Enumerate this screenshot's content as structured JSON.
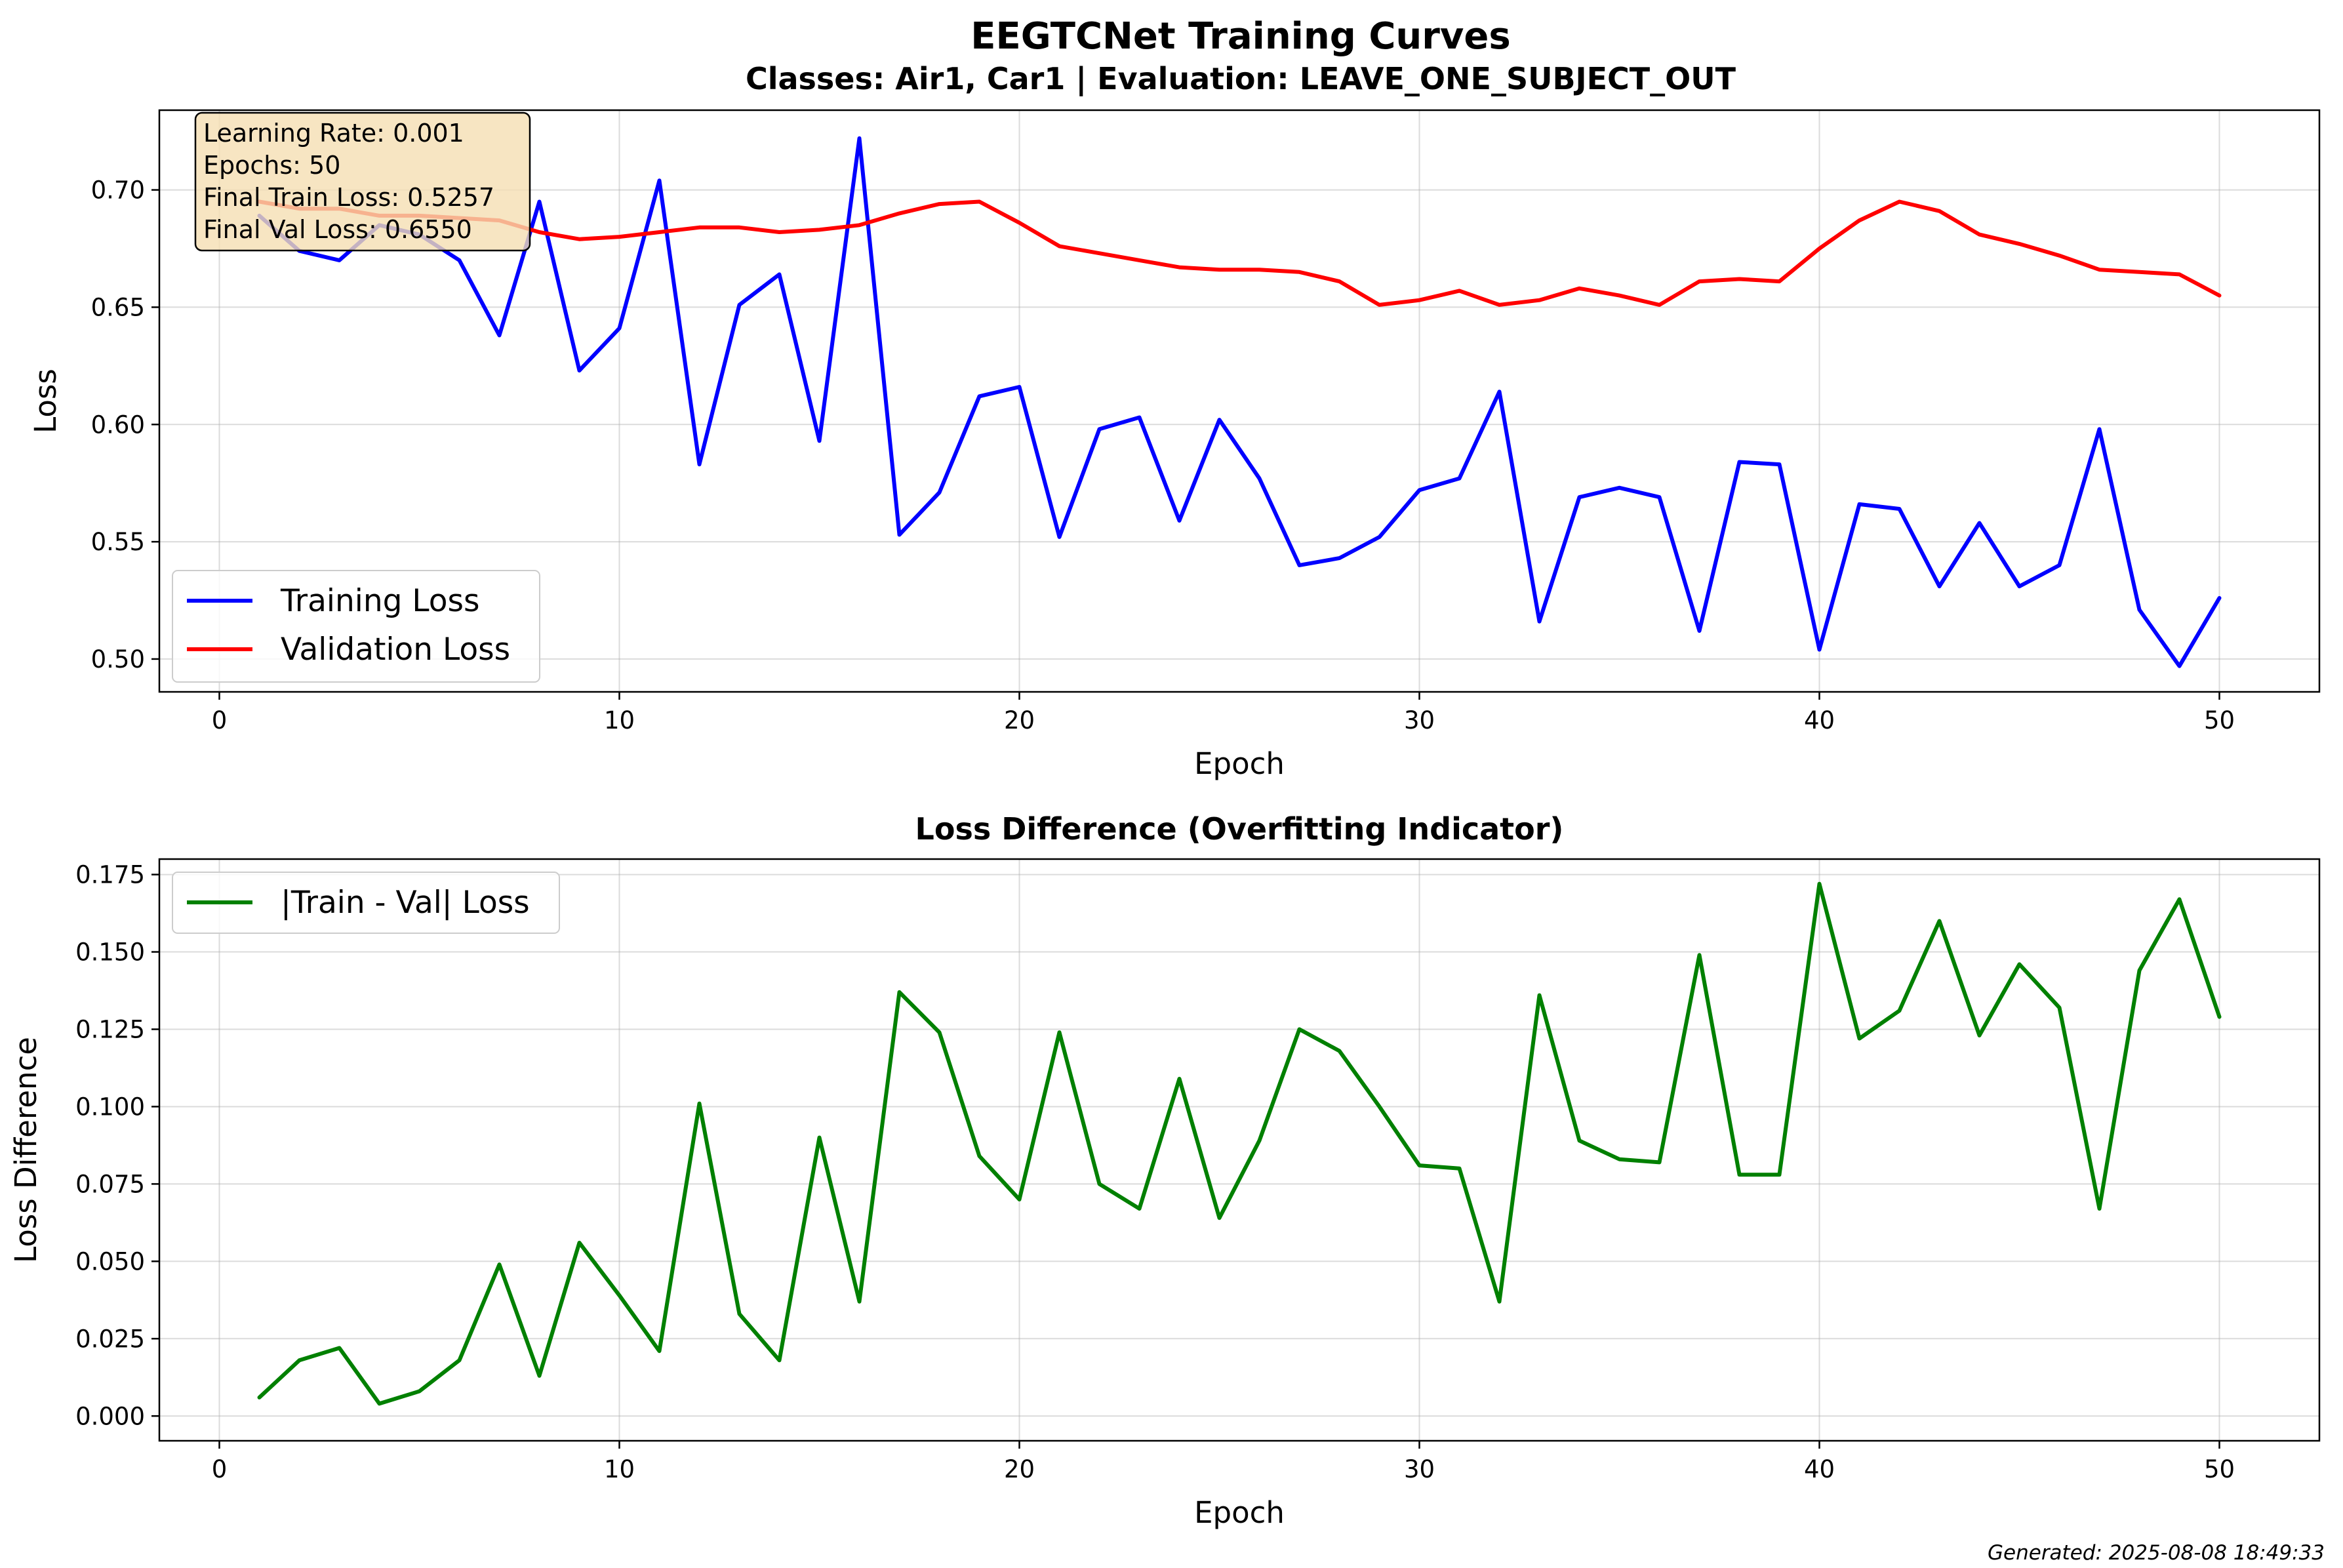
{
  "figure": {
    "title_line1": "EEGTCNet Training Curves",
    "title_line2": "Classes: Air1, Car1 | Evaluation: LEAVE_ONE_SUBJECT_OUT",
    "footer": "Generated: 2025-08-08 18:49:33"
  },
  "info_box": {
    "lines": [
      "Learning Rate: 0.001",
      "Epochs: 50",
      "Final Train Loss: 0.5257",
      "Final Val Loss: 0.6550"
    ],
    "background": "#f5deb3"
  },
  "chart_data": [
    {
      "type": "line",
      "xlabel": "Epoch",
      "ylabel": "Loss",
      "xlim": [
        -1.5,
        52.5
      ],
      "ylim": [
        0.486,
        0.734
      ],
      "xticks": [
        0,
        10,
        20,
        30,
        40,
        50
      ],
      "yticks": [
        0.5,
        0.55,
        0.6,
        0.65,
        0.7
      ],
      "ytick_labels": [
        "0.50",
        "0.55",
        "0.60",
        "0.65",
        "0.70"
      ],
      "grid": true,
      "legend_position": "lower-left",
      "x": [
        1,
        2,
        3,
        4,
        5,
        6,
        7,
        8,
        9,
        10,
        11,
        12,
        13,
        14,
        15,
        16,
        17,
        18,
        19,
        20,
        21,
        22,
        23,
        24,
        25,
        26,
        27,
        28,
        29,
        30,
        31,
        32,
        33,
        34,
        35,
        36,
        37,
        38,
        39,
        40,
        41,
        42,
        43,
        44,
        45,
        46,
        47,
        48,
        49,
        50
      ],
      "series": [
        {
          "name": "Training Loss",
          "color": "#0000ff",
          "values": [
            0.689,
            0.674,
            0.67,
            0.685,
            0.681,
            0.67,
            0.638,
            0.695,
            0.623,
            0.641,
            0.704,
            0.583,
            0.651,
            0.664,
            0.593,
            0.722,
            0.553,
            0.571,
            0.612,
            0.616,
            0.552,
            0.598,
            0.603,
            0.559,
            0.602,
            0.577,
            0.54,
            0.543,
            0.552,
            0.572,
            0.577,
            0.614,
            0.516,
            0.569,
            0.573,
            0.569,
            0.512,
            0.584,
            0.583,
            0.504,
            0.566,
            0.564,
            0.531,
            0.558,
            0.531,
            0.54,
            0.598,
            0.521,
            0.497,
            0.526
          ]
        },
        {
          "name": "Validation Loss",
          "color": "#ff0000",
          "values": [
            0.695,
            0.692,
            0.692,
            0.689,
            0.689,
            0.688,
            0.687,
            0.682,
            0.679,
            0.68,
            0.682,
            0.684,
            0.684,
            0.682,
            0.683,
            0.685,
            0.69,
            0.694,
            0.695,
            0.686,
            0.676,
            0.673,
            0.67,
            0.667,
            0.666,
            0.666,
            0.665,
            0.661,
            0.651,
            0.653,
            0.657,
            0.651,
            0.653,
            0.658,
            0.655,
            0.651,
            0.661,
            0.662,
            0.661,
            0.675,
            0.687,
            0.695,
            0.691,
            0.681,
            0.677,
            0.672,
            0.666,
            0.665,
            0.664,
            0.655
          ]
        }
      ]
    },
    {
      "type": "line",
      "title": "Loss Difference (Overfitting Indicator)",
      "xlabel": "Epoch",
      "ylabel": "Loss Difference",
      "xlim": [
        -1.5,
        52.5
      ],
      "ylim": [
        -0.008,
        0.18
      ],
      "xticks": [
        0,
        10,
        20,
        30,
        40,
        50
      ],
      "yticks": [
        0.0,
        0.025,
        0.05,
        0.075,
        0.1,
        0.125,
        0.15,
        0.175
      ],
      "ytick_labels": [
        "0.000",
        "0.025",
        "0.050",
        "0.075",
        "0.100",
        "0.125",
        "0.150",
        "0.175"
      ],
      "grid": true,
      "legend_position": "upper-left",
      "x": [
        1,
        2,
        3,
        4,
        5,
        6,
        7,
        8,
        9,
        10,
        11,
        12,
        13,
        14,
        15,
        16,
        17,
        18,
        19,
        20,
        21,
        22,
        23,
        24,
        25,
        26,
        27,
        28,
        29,
        30,
        31,
        32,
        33,
        34,
        35,
        36,
        37,
        38,
        39,
        40,
        41,
        42,
        43,
        44,
        45,
        46,
        47,
        48,
        49,
        50
      ],
      "series": [
        {
          "name": "|Train - Val| Loss",
          "color": "#008000",
          "values": [
            0.006,
            0.018,
            0.022,
            0.004,
            0.008,
            0.018,
            0.049,
            0.013,
            0.056,
            0.039,
            0.021,
            0.101,
            0.033,
            0.018,
            0.09,
            0.037,
            0.137,
            0.124,
            0.084,
            0.07,
            0.124,
            0.075,
            0.067,
            0.109,
            0.064,
            0.089,
            0.125,
            0.118,
            0.1,
            0.081,
            0.08,
            0.037,
            0.136,
            0.089,
            0.083,
            0.082,
            0.149,
            0.078,
            0.078,
            0.172,
            0.122,
            0.131,
            0.16,
            0.123,
            0.146,
            0.132,
            0.067,
            0.144,
            0.167,
            0.129
          ]
        }
      ]
    }
  ]
}
